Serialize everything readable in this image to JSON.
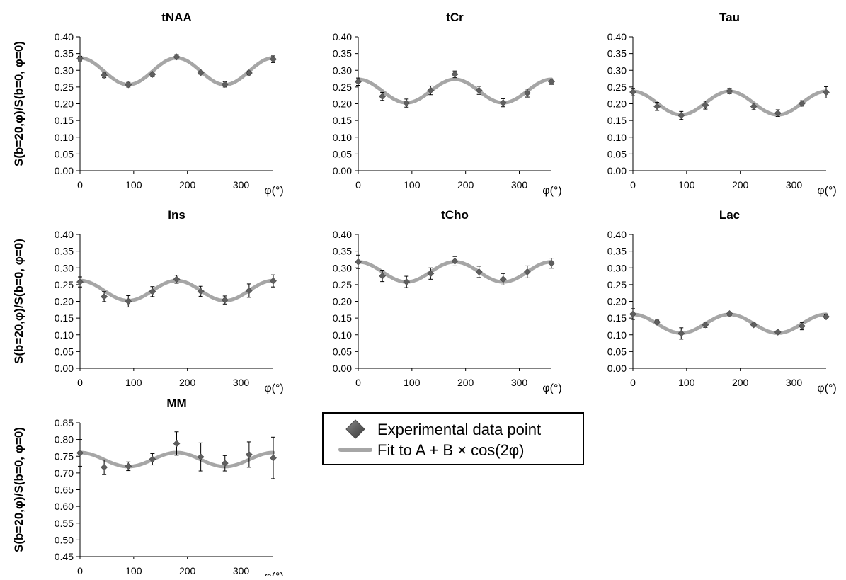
{
  "figure": {
    "ylabel": "S(b=20,φ)/S(b=0, φ=0)",
    "xlabel": "φ(°)",
    "legend": {
      "marker_label": "Experimental data point",
      "line_label": "Fit to A + B × cos(2φ)"
    }
  },
  "colors": {
    "marker": "#5f5f5f",
    "fit": "#a6a6a6",
    "axis": "#000000",
    "errorbar": "#000000"
  },
  "chart_data": [
    {
      "type": "scatter",
      "title": "tNAA",
      "xlabel": "φ(°)",
      "ylabel": "S(b=20,φ)/S(b=0, φ=0)",
      "xlim": [
        0,
        360
      ],
      "xticks": [
        0,
        100,
        200,
        300
      ],
      "ylim": [
        0,
        0.4
      ],
      "yticks": [
        0,
        0.05,
        0.1,
        0.15,
        0.2,
        0.25,
        0.3,
        0.35,
        0.4
      ],
      "x": [
        0,
        45,
        90,
        135,
        180,
        225,
        270,
        315,
        360
      ],
      "y": [
        0.335,
        0.285,
        0.257,
        0.288,
        0.34,
        0.293,
        0.258,
        0.292,
        0.333
      ],
      "err": [
        0.007,
        0.007,
        0.007,
        0.007,
        0.007,
        0.005,
        0.008,
        0.006,
        0.01
      ],
      "fit": {
        "A": 0.297,
        "B": 0.04
      }
    },
    {
      "type": "scatter",
      "title": "tCr",
      "xlabel": "φ(°)",
      "ylabel": "S(b=20,φ)/S(b=0, φ=0)",
      "xlim": [
        0,
        360
      ],
      "xticks": [
        0,
        100,
        200,
        300
      ],
      "ylim": [
        0,
        0.4
      ],
      "yticks": [
        0,
        0.05,
        0.1,
        0.15,
        0.2,
        0.25,
        0.3,
        0.35,
        0.4
      ],
      "x": [
        0,
        45,
        90,
        135,
        180,
        225,
        270,
        315,
        360
      ],
      "y": [
        0.266,
        0.222,
        0.202,
        0.24,
        0.288,
        0.24,
        0.203,
        0.232,
        0.266
      ],
      "err": [
        0.011,
        0.012,
        0.012,
        0.013,
        0.01,
        0.012,
        0.012,
        0.012,
        0.008
      ],
      "fit": {
        "A": 0.238,
        "B": 0.035
      }
    },
    {
      "type": "scatter",
      "title": "Tau",
      "xlabel": "φ(°)",
      "ylabel": "S(b=20,φ)/S(b=0, φ=0)",
      "xlim": [
        0,
        360
      ],
      "xticks": [
        0,
        100,
        200,
        300
      ],
      "ylim": [
        0,
        0.4
      ],
      "yticks": [
        0,
        0.05,
        0.1,
        0.15,
        0.2,
        0.25,
        0.3,
        0.35,
        0.4
      ],
      "x": [
        0,
        45,
        90,
        135,
        180,
        225,
        270,
        315,
        360
      ],
      "y": [
        0.235,
        0.192,
        0.165,
        0.196,
        0.238,
        0.192,
        0.172,
        0.201,
        0.234
      ],
      "err": [
        0.011,
        0.012,
        0.012,
        0.012,
        0.008,
        0.01,
        0.01,
        0.008,
        0.017
      ],
      "fit": {
        "A": 0.202,
        "B": 0.035
      }
    },
    {
      "type": "scatter",
      "title": "Ins",
      "xlabel": "φ(°)",
      "ylabel": "S(b=20,φ)/S(b=0, φ=0)",
      "xlim": [
        0,
        360
      ],
      "xticks": [
        0,
        100,
        200,
        300
      ],
      "ylim": [
        0,
        0.4
      ],
      "yticks": [
        0,
        0.05,
        0.1,
        0.15,
        0.2,
        0.25,
        0.3,
        0.35,
        0.4
      ],
      "x": [
        0,
        45,
        90,
        135,
        180,
        225,
        270,
        315,
        360
      ],
      "y": [
        0.258,
        0.214,
        0.2,
        0.229,
        0.266,
        0.23,
        0.204,
        0.232,
        0.261
      ],
      "err": [
        0.015,
        0.015,
        0.017,
        0.015,
        0.012,
        0.015,
        0.012,
        0.02,
        0.018
      ],
      "fit": {
        "A": 0.232,
        "B": 0.03
      }
    },
    {
      "type": "scatter",
      "title": "tCho",
      "xlabel": "φ(°)",
      "ylabel": "S(b=20,φ)/S(b=0, φ=0)",
      "xlim": [
        0,
        360
      ],
      "xticks": [
        0,
        100,
        200,
        300
      ],
      "ylim": [
        0,
        0.4
      ],
      "yticks": [
        0,
        0.05,
        0.1,
        0.15,
        0.2,
        0.25,
        0.3,
        0.35,
        0.4
      ],
      "x": [
        0,
        45,
        90,
        135,
        180,
        225,
        270,
        315,
        360
      ],
      "y": [
        0.318,
        0.276,
        0.258,
        0.283,
        0.32,
        0.288,
        0.266,
        0.288,
        0.314
      ],
      "err": [
        0.02,
        0.017,
        0.017,
        0.017,
        0.014,
        0.017,
        0.017,
        0.018,
        0.015
      ],
      "fit": {
        "A": 0.288,
        "B": 0.03
      }
    },
    {
      "type": "scatter",
      "title": "Lac",
      "xlabel": "φ(°)",
      "ylabel": "S(b=20,φ)/S(b=0, φ=0)",
      "xlim": [
        0,
        360
      ],
      "xticks": [
        0,
        100,
        200,
        300
      ],
      "ylim": [
        0,
        0.4
      ],
      "yticks": [
        0,
        0.05,
        0.1,
        0.15,
        0.2,
        0.25,
        0.3,
        0.35,
        0.4
      ],
      "x": [
        0,
        45,
        90,
        135,
        180,
        225,
        270,
        315,
        360
      ],
      "y": [
        0.162,
        0.138,
        0.104,
        0.13,
        0.163,
        0.13,
        0.108,
        0.126,
        0.154
      ],
      "err": [
        0.016,
        0.006,
        0.017,
        0.008,
        0.005,
        0.005,
        0.004,
        0.011,
        0.006
      ],
      "fit": {
        "A": 0.133,
        "B": 0.028
      }
    },
    {
      "type": "scatter",
      "title": "MM",
      "xlabel": "φ(°)",
      "ylabel": "S(b=20,φ)/S(b=0, φ=0)",
      "xlim": [
        0,
        360
      ],
      "xticks": [
        0,
        100,
        200,
        300
      ],
      "ylim": [
        0.45,
        0.85
      ],
      "yticks": [
        0.45,
        0.5,
        0.55,
        0.6,
        0.65,
        0.7,
        0.75,
        0.8,
        0.85
      ],
      "x": [
        0,
        45,
        90,
        135,
        180,
        225,
        270,
        315,
        360
      ],
      "y": [
        0.76,
        0.717,
        0.72,
        0.741,
        0.788,
        0.748,
        0.729,
        0.755,
        0.745
      ],
      "err": [
        0.04,
        0.022,
        0.013,
        0.017,
        0.035,
        0.042,
        0.023,
        0.038,
        0.062
      ],
      "fit": {
        "A": 0.74,
        "B": 0.021
      }
    }
  ]
}
